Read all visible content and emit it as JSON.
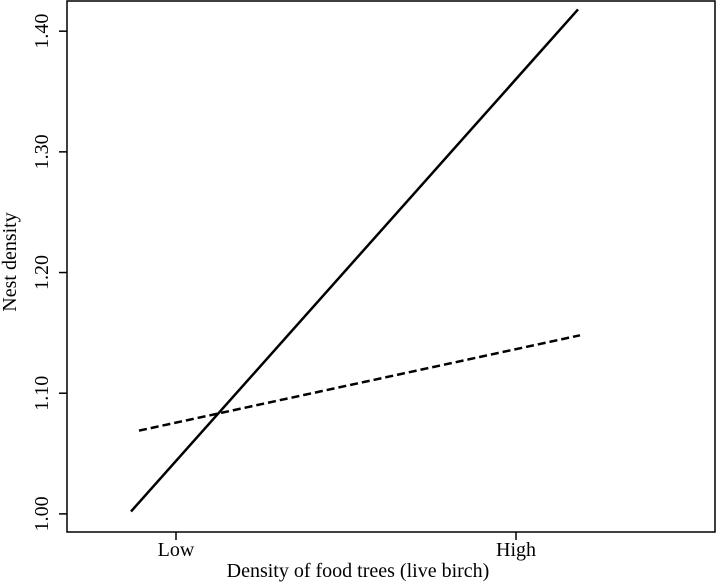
{
  "chart_data": {
    "type": "line",
    "title": "",
    "xlabel": "Density of food trees (live birch)",
    "ylabel": "Nest density",
    "categories": [
      "Low",
      "High"
    ],
    "ylim": [
      0.985,
      1.425
    ],
    "yticks": [
      1.0,
      1.1,
      1.2,
      1.3,
      1.4
    ],
    "yticklabels": [
      "1.00",
      "1.10",
      "1.20",
      "1.30",
      "1.40"
    ],
    "grid": false,
    "legend": "none",
    "series": [
      {
        "style": "solid",
        "color": "#000000",
        "values": [
          1.002,
          1.418
        ]
      },
      {
        "style": "dashed",
        "color": "#000000",
        "values": [
          1.069,
          1.148
        ]
      }
    ]
  }
}
